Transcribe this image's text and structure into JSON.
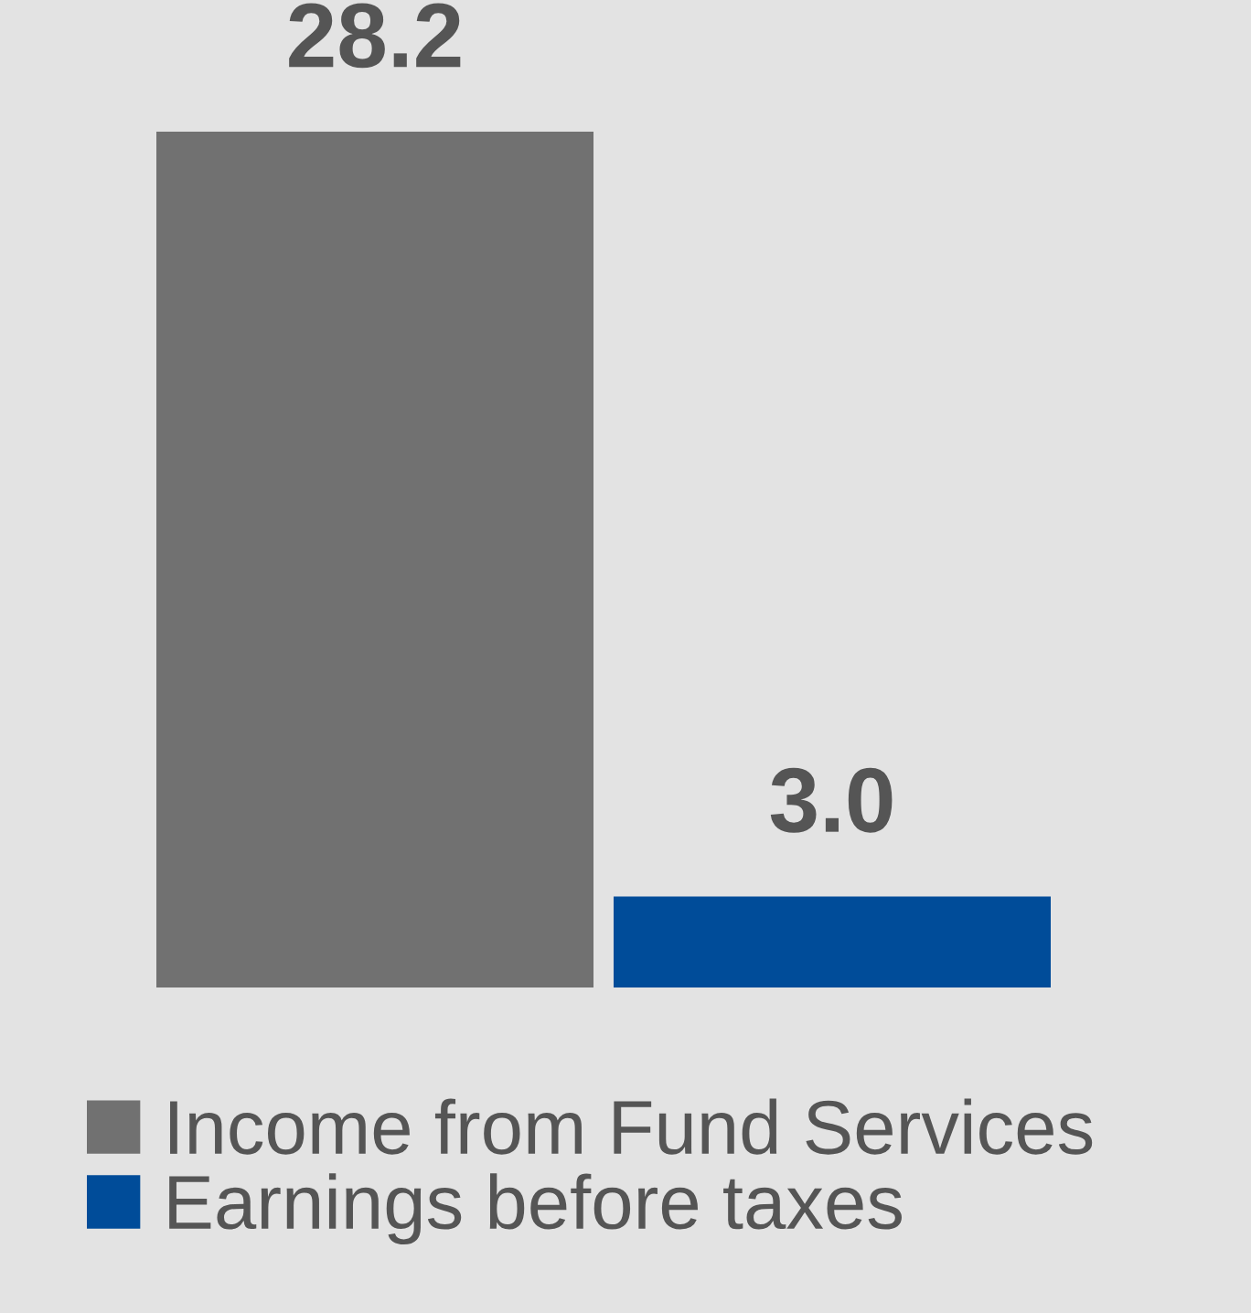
{
  "chart_data": {
    "type": "bar",
    "categories": [
      null
    ],
    "series": [
      {
        "name": "Income from Fund Services",
        "color": "#717171",
        "values": [
          28.2
        ],
        "value_labels": [
          "28.2"
        ]
      },
      {
        "name": "Earnings before taxes",
        "color": "#004c99",
        "values": [
          3.0
        ],
        "value_labels": [
          "3.0"
        ]
      }
    ],
    "legend": "bottom",
    "grid": false
  }
}
